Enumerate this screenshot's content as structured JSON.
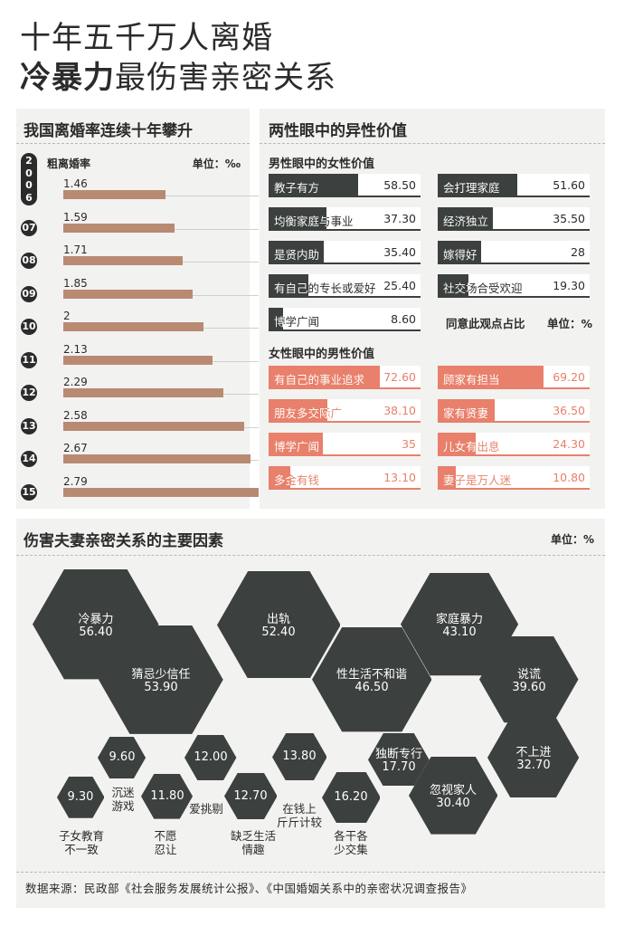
{
  "title": {
    "line1": "十年五千万人离婚",
    "line2_bold": "冷暴力",
    "line2_rest": "最伤害亲密关系"
  },
  "colors": {
    "dark": "#3c403f",
    "salmon": "#e8806b",
    "bar": "#b98a72",
    "panel": "#f2f2f1"
  },
  "rate_panel": {
    "title": "我国离婚率连续十年攀升",
    "legend": "粗离婚率",
    "unit": "单位：‰",
    "first_year_chars": [
      "2",
      "0",
      "0",
      "6"
    ]
  },
  "values_panel": {
    "title": "两性眼中的异性价值",
    "male_title": "男性眼中的女性价值",
    "female_title": "女性眼中的男性价值",
    "note": "同意此观点占比",
    "unit": "单位：%"
  },
  "factors_panel": {
    "title": "伤害夫妻亲密关系的主要因素",
    "unit": "单位：%"
  },
  "source": "数据来源：民政部《社会服务发展统计公报》、《中国婚姻关系中的亲密状况调查报告》",
  "chart_data": [
    {
      "type": "bar",
      "title": "我国离婚率连续十年攀升",
      "legend": "粗离婚率",
      "categories": [
        "2006",
        "07",
        "08",
        "09",
        "10",
        "11",
        "12",
        "13",
        "14",
        "15"
      ],
      "values": [
        1.46,
        1.59,
        1.71,
        1.85,
        2,
        2.13,
        2.29,
        2.58,
        2.67,
        2.79
      ],
      "value_labels": [
        "1.46",
        "1.59",
        "1.71",
        "1.85",
        "2",
        "2.13",
        "2.29",
        "2.58",
        "2.67",
        "2.79"
      ],
      "unit": "‰"
    },
    {
      "type": "bar",
      "title": "男性眼中的女性价值",
      "unit": "%",
      "items": [
        {
          "label": "教子有方",
          "value": 58.5,
          "text": "58.50"
        },
        {
          "label": "会打理家庭",
          "value": 51.6,
          "text": "51.60"
        },
        {
          "label": "均衡家庭与事业",
          "value": 37.3,
          "text": "37.30"
        },
        {
          "label": "经济独立",
          "value": 35.5,
          "text": "35.50"
        },
        {
          "label": "是贤内助",
          "value": 35.4,
          "text": "35.40"
        },
        {
          "label": "嫁得好",
          "value": 28,
          "text": "28"
        },
        {
          "label": "有自己的专长或爱好",
          "value": 25.4,
          "text": "25.40"
        },
        {
          "label": "社交场合受欢迎",
          "value": 19.3,
          "text": "19.30"
        },
        {
          "label": "博学广闻",
          "value": 8.6,
          "text": "8.60"
        }
      ]
    },
    {
      "type": "bar",
      "title": "女性眼中的男性价值",
      "unit": "%",
      "items": [
        {
          "label": "有自己的事业追求",
          "value": 72.6,
          "text": "72.60"
        },
        {
          "label": "顾家有担当",
          "value": 69.2,
          "text": "69.20"
        },
        {
          "label": "朋友多交际广",
          "value": 38.1,
          "text": "38.10"
        },
        {
          "label": "家有贤妻",
          "value": 36.5,
          "text": "36.50"
        },
        {
          "label": "博学广闻",
          "value": 35,
          "text": "35"
        },
        {
          "label": "儿女有出息",
          "value": 24.3,
          "text": "24.30"
        },
        {
          "label": "多金有钱",
          "value": 13.1,
          "text": "13.10"
        },
        {
          "label": "妻子是万人迷",
          "value": 10.8,
          "text": "10.80"
        }
      ]
    },
    {
      "type": "bubble",
      "title": "伤害夫妻亲密关系的主要因素",
      "unit": "%",
      "items": [
        {
          "label": "冷暴力",
          "value": 56.4,
          "text": "56.40"
        },
        {
          "label": "猜忌少信任",
          "value": 53.9,
          "text": "53.90"
        },
        {
          "label": "出轨",
          "value": 52.4,
          "text": "52.40"
        },
        {
          "label": "性生活不和谐",
          "value": 46.5,
          "text": "46.50"
        },
        {
          "label": "家庭暴力",
          "value": 43.1,
          "text": "43.10"
        },
        {
          "label": "说谎",
          "value": 39.6,
          "text": "39.60"
        },
        {
          "label": "不上进",
          "value": 32.7,
          "text": "32.70"
        },
        {
          "label": "忽视家人",
          "value": 30.4,
          "text": "30.40"
        },
        {
          "label": "独断专行",
          "value": 17.7,
          "text": "17.70"
        },
        {
          "label": "各干各少交集",
          "value": 16.2,
          "text": "16.20"
        },
        {
          "label": "在钱上斤斤计较",
          "value": 13.8,
          "text": "13.80"
        },
        {
          "label": "缺乏生活情趣",
          "value": 12.7,
          "text": "12.70"
        },
        {
          "label": "爱挑剔",
          "value": 12.0,
          "text": "12.00"
        },
        {
          "label": "不愿忍让",
          "value": 11.8,
          "text": "11.80"
        },
        {
          "label": "沉迷游戏",
          "value": 9.6,
          "text": "9.60"
        },
        {
          "label": "子女教育不一致",
          "value": 9.3,
          "text": "9.30"
        }
      ]
    }
  ]
}
